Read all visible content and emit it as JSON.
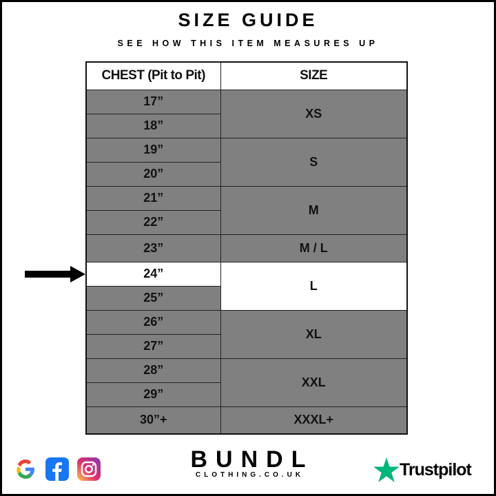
{
  "header": {
    "title": "SIZE GUIDE",
    "subtitle": "SEE HOW THIS ITEM MEASURES UP"
  },
  "table": {
    "columns": [
      "CHEST (Pit to Pit)",
      "SIZE"
    ],
    "chest": [
      "17”",
      "18”",
      "19”",
      "20”",
      "21”",
      "22”",
      "23”",
      "24”",
      "25”",
      "26”",
      "27”",
      "28”",
      "29”",
      "30”+"
    ],
    "sizes": [
      "XS",
      "S",
      "M",
      "M / L",
      "L",
      "XL",
      "XXL",
      "XXXL+"
    ],
    "highlighted_row": "24”"
  },
  "footer": {
    "brand": "BUNDL",
    "domain": "CLOTHING.CO.UK",
    "trustpilot": "Trustpilot",
    "social_icons": [
      "google-icon",
      "facebook-icon",
      "instagram-icon"
    ]
  },
  "colors": {
    "cell_gray": "#808080",
    "trustpilot_green": "#00b67a"
  }
}
